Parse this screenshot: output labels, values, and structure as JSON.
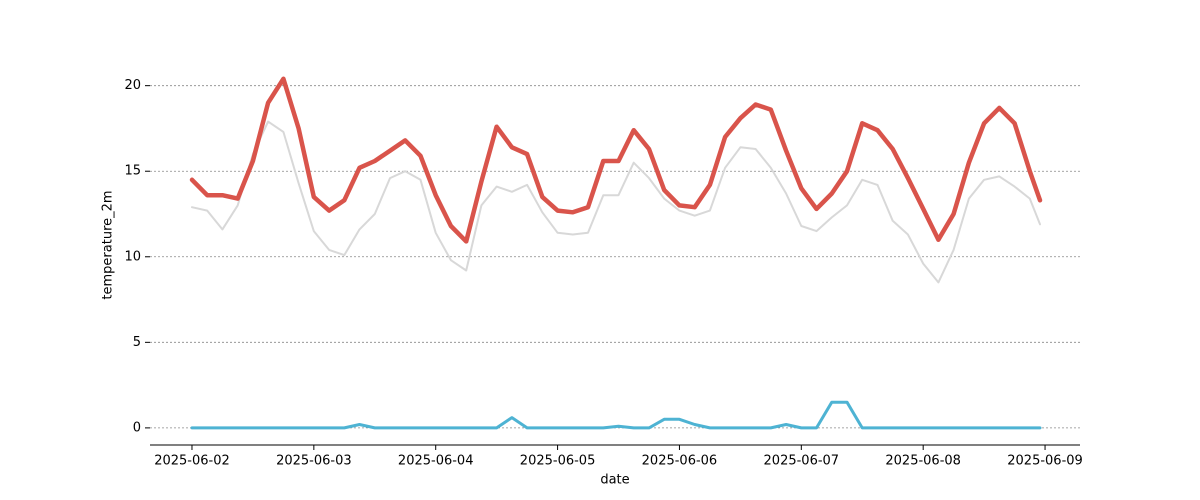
{
  "chart_data": {
    "type": "line",
    "x_label": "date",
    "y_label": "temperature_2m",
    "x": [
      "2025-06-02 00:00",
      "2025-06-02 03:00",
      "2025-06-02 06:00",
      "2025-06-02 09:00",
      "2025-06-02 12:00",
      "2025-06-02 15:00",
      "2025-06-02 18:00",
      "2025-06-02 21:00",
      "2025-06-03 00:00",
      "2025-06-03 03:00",
      "2025-06-03 06:00",
      "2025-06-03 09:00",
      "2025-06-03 12:00",
      "2025-06-03 15:00",
      "2025-06-03 18:00",
      "2025-06-03 21:00",
      "2025-06-04 00:00",
      "2025-06-04 03:00",
      "2025-06-04 06:00",
      "2025-06-04 09:00",
      "2025-06-04 12:00",
      "2025-06-04 15:00",
      "2025-06-04 18:00",
      "2025-06-04 21:00",
      "2025-06-05 00:00",
      "2025-06-05 03:00",
      "2025-06-05 06:00",
      "2025-06-05 09:00",
      "2025-06-05 12:00",
      "2025-06-05 15:00",
      "2025-06-05 18:00",
      "2025-06-05 21:00",
      "2025-06-06 00:00",
      "2025-06-06 03:00",
      "2025-06-06 06:00",
      "2025-06-06 09:00",
      "2025-06-06 12:00",
      "2025-06-06 15:00",
      "2025-06-06 18:00",
      "2025-06-06 21:00",
      "2025-06-07 00:00",
      "2025-06-07 03:00",
      "2025-06-07 06:00",
      "2025-06-07 09:00",
      "2025-06-07 12:00",
      "2025-06-07 15:00",
      "2025-06-07 18:00",
      "2025-06-07 21:00",
      "2025-06-08 00:00",
      "2025-06-08 03:00",
      "2025-06-08 06:00",
      "2025-06-08 09:00",
      "2025-06-08 12:00",
      "2025-06-08 15:00",
      "2025-06-08 18:00",
      "2025-06-08 21:00",
      "2025-06-08 23:00"
    ],
    "series": [
      {
        "color": "#d8d8d8",
        "width": 2,
        "values": [
          12.9,
          12.7,
          11.6,
          13.0,
          16.0,
          17.9,
          17.3,
          14.3,
          11.5,
          10.4,
          10.1,
          11.6,
          12.5,
          14.6,
          15.0,
          14.5,
          11.4,
          9.8,
          9.2,
          13.0,
          14.1,
          13.8,
          14.2,
          12.6,
          11.4,
          11.3,
          11.4,
          13.6,
          13.6,
          15.5,
          14.6,
          13.4,
          12.7,
          12.4,
          12.7,
          15.2,
          16.4,
          16.3,
          15.2,
          13.7,
          11.8,
          11.5,
          12.3,
          13.0,
          14.5,
          14.2,
          12.1,
          11.3,
          9.6,
          8.5,
          10.4,
          13.4,
          14.5,
          14.7,
          14.1,
          13.4,
          11.9
        ]
      },
      {
        "color": "#d9544b",
        "width": 4.5,
        "values": [
          14.5,
          13.6,
          13.6,
          13.4,
          15.6,
          19.0,
          20.4,
          17.5,
          13.5,
          12.7,
          13.3,
          15.2,
          15.6,
          16.2,
          16.8,
          15.9,
          13.6,
          11.8,
          10.9,
          14.4,
          17.6,
          16.4,
          16.0,
          13.5,
          12.7,
          12.6,
          12.9,
          15.6,
          15.6,
          17.4,
          16.3,
          13.9,
          13.0,
          12.9,
          14.2,
          17.0,
          18.1,
          18.9,
          18.6,
          16.2,
          14.0,
          12.8,
          13.7,
          15.0,
          17.8,
          17.4,
          16.3,
          14.6,
          12.8,
          11.0,
          12.5,
          15.5,
          17.8,
          18.7,
          17.8,
          15.0,
          13.3
        ]
      },
      {
        "color": "#4eb3d3",
        "width": 3,
        "values": [
          0,
          0,
          0,
          0,
          0,
          0,
          0,
          0,
          0,
          0,
          0,
          0.2,
          0,
          0,
          0,
          0,
          0,
          0,
          0,
          0,
          0,
          0.6,
          0,
          0,
          0,
          0,
          0,
          0,
          0.1,
          0,
          0,
          0.5,
          0.5,
          0.2,
          0,
          0,
          0,
          0,
          0,
          0.2,
          0,
          0,
          1.5,
          1.5,
          0,
          0,
          0,
          0,
          0,
          0,
          0,
          0,
          0,
          0,
          0,
          0,
          0
        ]
      }
    ],
    "xlim": [
      "2025-06-01 15:44",
      "2025-06-09 06:53"
    ],
    "xticks": [
      "2025-06-02",
      "2025-06-03",
      "2025-06-04",
      "2025-06-05",
      "2025-06-06",
      "2025-06-07",
      "2025-06-08",
      "2025-06-09"
    ],
    "ylim": [
      -1,
      21.5
    ],
    "yticks": [
      0,
      5,
      10,
      15,
      20
    ],
    "grid": true
  }
}
